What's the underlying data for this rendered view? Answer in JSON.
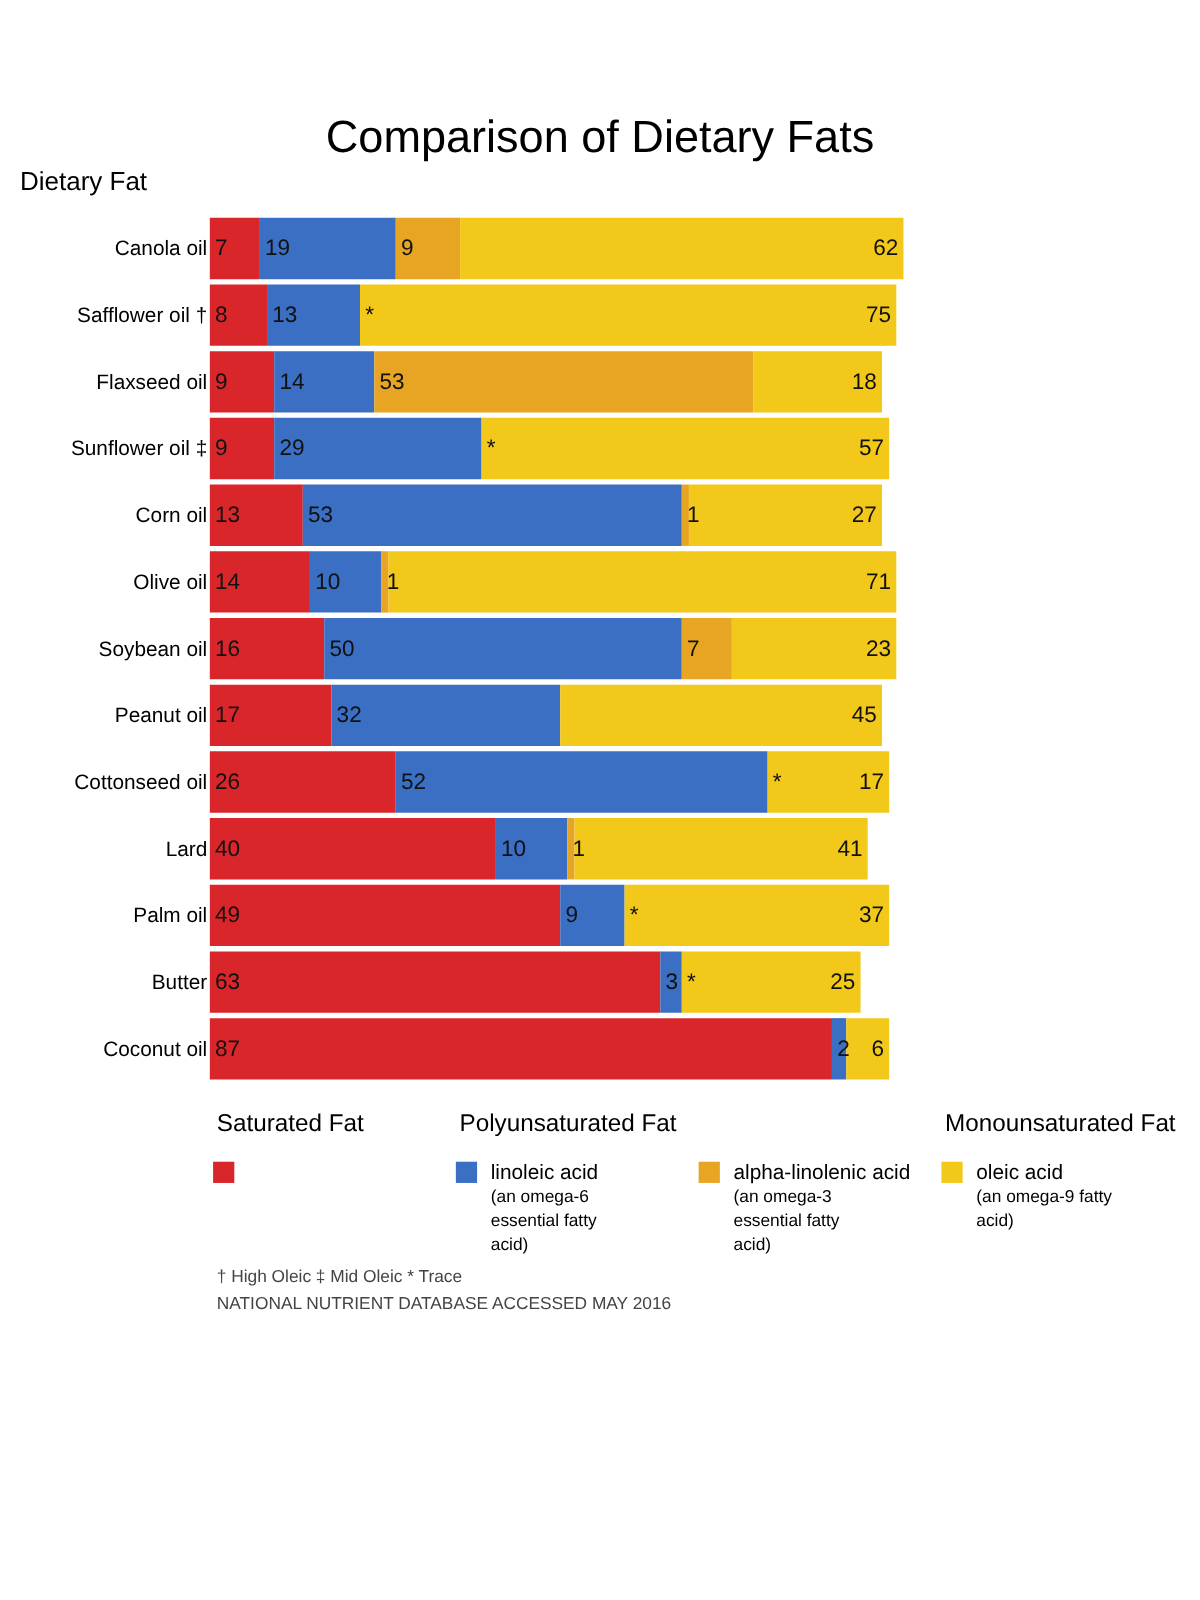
{
  "chart_data": {
    "type": "bar",
    "orientation": "horizontal",
    "stacked": true,
    "data_labels": true,
    "legend": "bottom",
    "title": "Comparison of Dietary Fats",
    "ylabel": "Dietary Fat",
    "categories": [
      "Canola oil",
      "Safflower oil †",
      "Flaxseed oil",
      "Sunflower oil ‡",
      "Corn oil",
      "Olive oil",
      "Soybean oil",
      "Peanut oil",
      "Cottonseed oil",
      "Lard",
      "Palm oil",
      "Butter",
      "Coconut oil"
    ],
    "series": [
      {
        "color": "#d9262b",
        "values": [
          7,
          8,
          9,
          9,
          13,
          14,
          16,
          17,
          26,
          40,
          49,
          63,
          87
        ]
      },
      {
        "name": "linoleic acid (an omega-6 essential fatty acid)",
        "color": "#3a6fc4",
        "values": [
          19,
          13,
          14,
          29,
          53,
          10,
          50,
          32,
          52,
          10,
          9,
          3,
          2
        ]
      },
      {
        "name": "alpha-linolenic acid (an omega-3 essential fatty acid)",
        "color": "#e8a523",
        "values": [
          9,
          null,
          53,
          null,
          1,
          1,
          7,
          null,
          null,
          1,
          null,
          null,
          null
        ],
        "value_labels": [
          "9",
          "*",
          "53",
          "*",
          "1",
          "1",
          "7",
          null,
          "*",
          "1",
          "*",
          "*",
          null
        ]
      },
      {
        "name": "oleic acid (an omega-9 fatty acid)",
        "color": "#f2c81a",
        "values": [
          62,
          75,
          18,
          57,
          27,
          71,
          23,
          45,
          17,
          41,
          37,
          25,
          6
        ]
      }
    ],
    "annotations": [
      "Saturated Fat",
      "Polyunsaturated Fat",
      "Monounsaturated Fat",
      "† High Oleic   ‡ Mid Oleic   * Trace",
      "NATIONAL NUTRIENT DATABASE   ACCESSED MAY 2016"
    ]
  }
}
